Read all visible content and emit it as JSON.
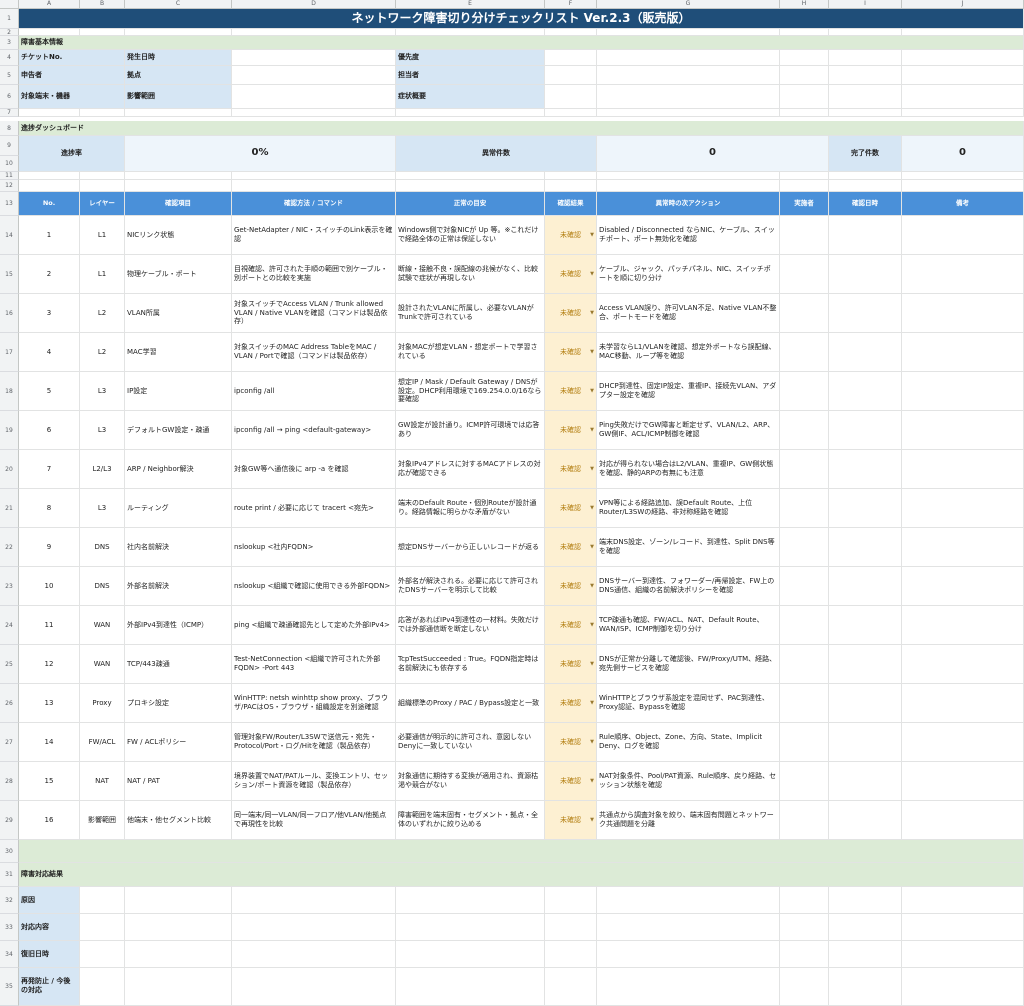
{
  "col_headers": [
    "A",
    "B",
    "C",
    "D",
    "E",
    "F",
    "G",
    "H",
    "I",
    "J"
  ],
  "title": "ネットワーク障害切り分けチェックリスト Ver.2.3（販売版）",
  "sections": {
    "basic": "障害基本情報",
    "dashboard": "進捗ダッシュボード",
    "result": "障害対応結果"
  },
  "basic": {
    "ticket": "チケットNo.",
    "occurred": "発生日時",
    "priority": "優先度",
    "reporter": "申告者",
    "site": "拠点",
    "owner": "担当者",
    "target": "対象端末・機器",
    "scope": "影響範囲",
    "summary": "症状概要"
  },
  "dashboard": {
    "progress_label": "進捗率",
    "progress_value": "0%",
    "abnormal_label": "異常件数",
    "abnormal_value": "0",
    "done_label": "完了件数",
    "done_value": "0"
  },
  "table_headers": [
    "No.",
    "レイヤー",
    "確認項目",
    "確認方法 / コマンド",
    "正常の目安",
    "確認結果",
    "異常時の次アクション",
    "実施者",
    "確認日時",
    "備考"
  ],
  "rows": [
    {
      "no": "1",
      "layer": "L1",
      "item": "NICリンク状態",
      "method": "Get-NetAdapter / NIC・スイッチのLink表示を確認",
      "normal": "Windows側で対象NICが Up 等。※これだけで経路全体の正常は保証しない",
      "result": "未確認",
      "action": "Disabled / Disconnected ならNIC、ケーブル、スイッチポート、ポート無効化を確認"
    },
    {
      "no": "2",
      "layer": "L1",
      "item": "物理ケーブル・ポート",
      "method": "目視確認、許可された手順の範囲で別ケーブル・別ポートとの比較を実施",
      "normal": "断線・接触不良・誤配線の兆候がなく、比較試験で症状が再現しない",
      "result": "未確認",
      "action": "ケーブル、ジャック、パッチパネル、NIC、スイッチポートを順に切り分け"
    },
    {
      "no": "3",
      "layer": "L2",
      "item": "VLAN所属",
      "method": "対象スイッチでAccess VLAN / Trunk allowed VLAN / Native VLANを確認（コマンドは製品依存）",
      "normal": "設計されたVLANに所属し、必要なVLANがTrunkで許可されている",
      "result": "未確認",
      "action": "Access VLAN誤り、許可VLAN不足、Native VLAN不整合、ポートモードを確認"
    },
    {
      "no": "4",
      "layer": "L2",
      "item": "MAC学習",
      "method": "対象スイッチのMAC Address TableをMAC / VLAN / Portで確認（コマンドは製品依存）",
      "normal": "対象MACが想定VLAN・想定ポートで学習されている",
      "result": "未確認",
      "action": "未学習ならL1/VLANを確認、想定外ポートなら誤配線、MAC移動、ループ等を確認"
    },
    {
      "no": "5",
      "layer": "L3",
      "item": "IP設定",
      "method": "ipconfig /all",
      "normal": "想定IP / Mask / Default Gateway / DNSが設定。DHCP利用環境で169.254.0.0/16なら要確認",
      "result": "未確認",
      "action": "DHCP到達性、固定IP設定、重複IP、接続先VLAN、アダプター設定を確認"
    },
    {
      "no": "6",
      "layer": "L3",
      "item": "デフォルトGW設定・疎通",
      "method": "ipconfig /all → ping <default-gateway>",
      "normal": "GW設定が設計通り。ICMP許可環境では応答あり",
      "result": "未確認",
      "action": "Ping失敗だけでGW障害と断定せず、VLAN/L2、ARP、GW側IF、ACL/ICMP制御を確認"
    },
    {
      "no": "7",
      "layer": "L2/L3",
      "item": "ARP / Neighbor解決",
      "method": "対象GW等へ通信後に arp -a を確認",
      "normal": "対象IPv4アドレスに対するMACアドレスの対応が確認できる",
      "result": "未確認",
      "action": "対応が得られない場合はL2/VLAN、重複IP、GW側状態を確認、静的ARPの有無にも注意"
    },
    {
      "no": "8",
      "layer": "L3",
      "item": "ルーティング",
      "method": "route print / 必要に応じて tracert <宛先>",
      "normal": "端末のDefault Route・個別Routeが設計通り。経路情報に明らかな矛盾がない",
      "result": "未確認",
      "action": "VPN等による経路追加、誤Default Route、上位Router/L3SWの経路、非対称経路を確認"
    },
    {
      "no": "9",
      "layer": "DNS",
      "item": "社内名前解決",
      "method": "nslookup <社内FQDN>",
      "normal": "想定DNSサーバーから正しいレコードが返る",
      "result": "未確認",
      "action": "端末DNS設定、ゾーン/レコード、到達性、Split DNS等を確認"
    },
    {
      "no": "10",
      "layer": "DNS",
      "item": "外部名前解決",
      "method": "nslookup <組織で確認に使用できる外部FQDN>",
      "normal": "外部名が解決される。必要に応じて許可されたDNSサーバーを明示して比較",
      "result": "未確認",
      "action": "DNSサーバー到達性、フォワーダー/再帰設定、FW上のDNS通信、組織の名前解決ポリシーを確認"
    },
    {
      "no": "11",
      "layer": "WAN",
      "item": "外部IPv4到達性（ICMP）",
      "method": "ping <組織で疎通確認先として定めた外部IPv4>",
      "normal": "応答があればIPv4到達性の一材料。失敗だけでは外部通信断を断定しない",
      "result": "未確認",
      "action": "TCP疎通も確認、FW/ACL、NAT、Default Route、WAN/ISP、ICMP制御を切り分け"
    },
    {
      "no": "12",
      "layer": "WAN",
      "item": "TCP/443疎通",
      "method": "Test-NetConnection <組織で許可された外部FQDN> -Port 443",
      "normal": "TcpTestSucceeded : True。FQDN指定時は名前解決にも依存する",
      "result": "未確認",
      "action": "DNSが正常か分離して確認後、FW/Proxy/UTM、経路、宛先側サービスを確認"
    },
    {
      "no": "13",
      "layer": "Proxy",
      "item": "プロキシ設定",
      "method": "WinHTTP: netsh winhttp show proxy、ブラウザ/PACはOS・ブラウザ・組織設定を別途確認",
      "normal": "組織標準のProxy / PAC / Bypass設定と一致",
      "result": "未確認",
      "action": "WinHTTPとブラウザ系設定を混同せず、PAC到達性、Proxy認証、Bypassを確認"
    },
    {
      "no": "14",
      "layer": "FW/ACL",
      "item": "FW / ACLポリシー",
      "method": "管理対象FW/Router/L3SWで送信元・宛先・Protocol/Port・ログ/Hitを確認（製品依存）",
      "normal": "必要通信が明示的に許可され、意図しないDenyに一致していない",
      "result": "未確認",
      "action": "Rule順序、Object、Zone、方向、State、Implicit Deny、ログを確認"
    },
    {
      "no": "15",
      "layer": "NAT",
      "item": "NAT / PAT",
      "method": "境界装置でNAT/PATルール、変換エントリ、セッション/ポート資源を確認（製品依存）",
      "normal": "対象通信に期待する変換が適用され、資源枯渇や競合がない",
      "result": "未確認",
      "action": "NAT対象条件、Pool/PAT資源、Rule順序、戻り経路、セッション状態を確認"
    },
    {
      "no": "16",
      "layer": "影響範囲",
      "item": "他端末・他セグメント比較",
      "method": "同一端末/同一VLAN/同一フロア/他VLAN/他拠点で再現性を比較",
      "normal": "障害範囲を端末固有・セグメント・拠点・全体のいずれかに絞り込める",
      "result": "未確認",
      "action": "共通点から調査対象を絞り、端末固有問題とネットワーク共通問題を分離"
    }
  ],
  "results": {
    "cause": "原因",
    "response": "対応内容",
    "recovery": "復旧日時",
    "prevention": "再発防止 / 今後の対応"
  }
}
